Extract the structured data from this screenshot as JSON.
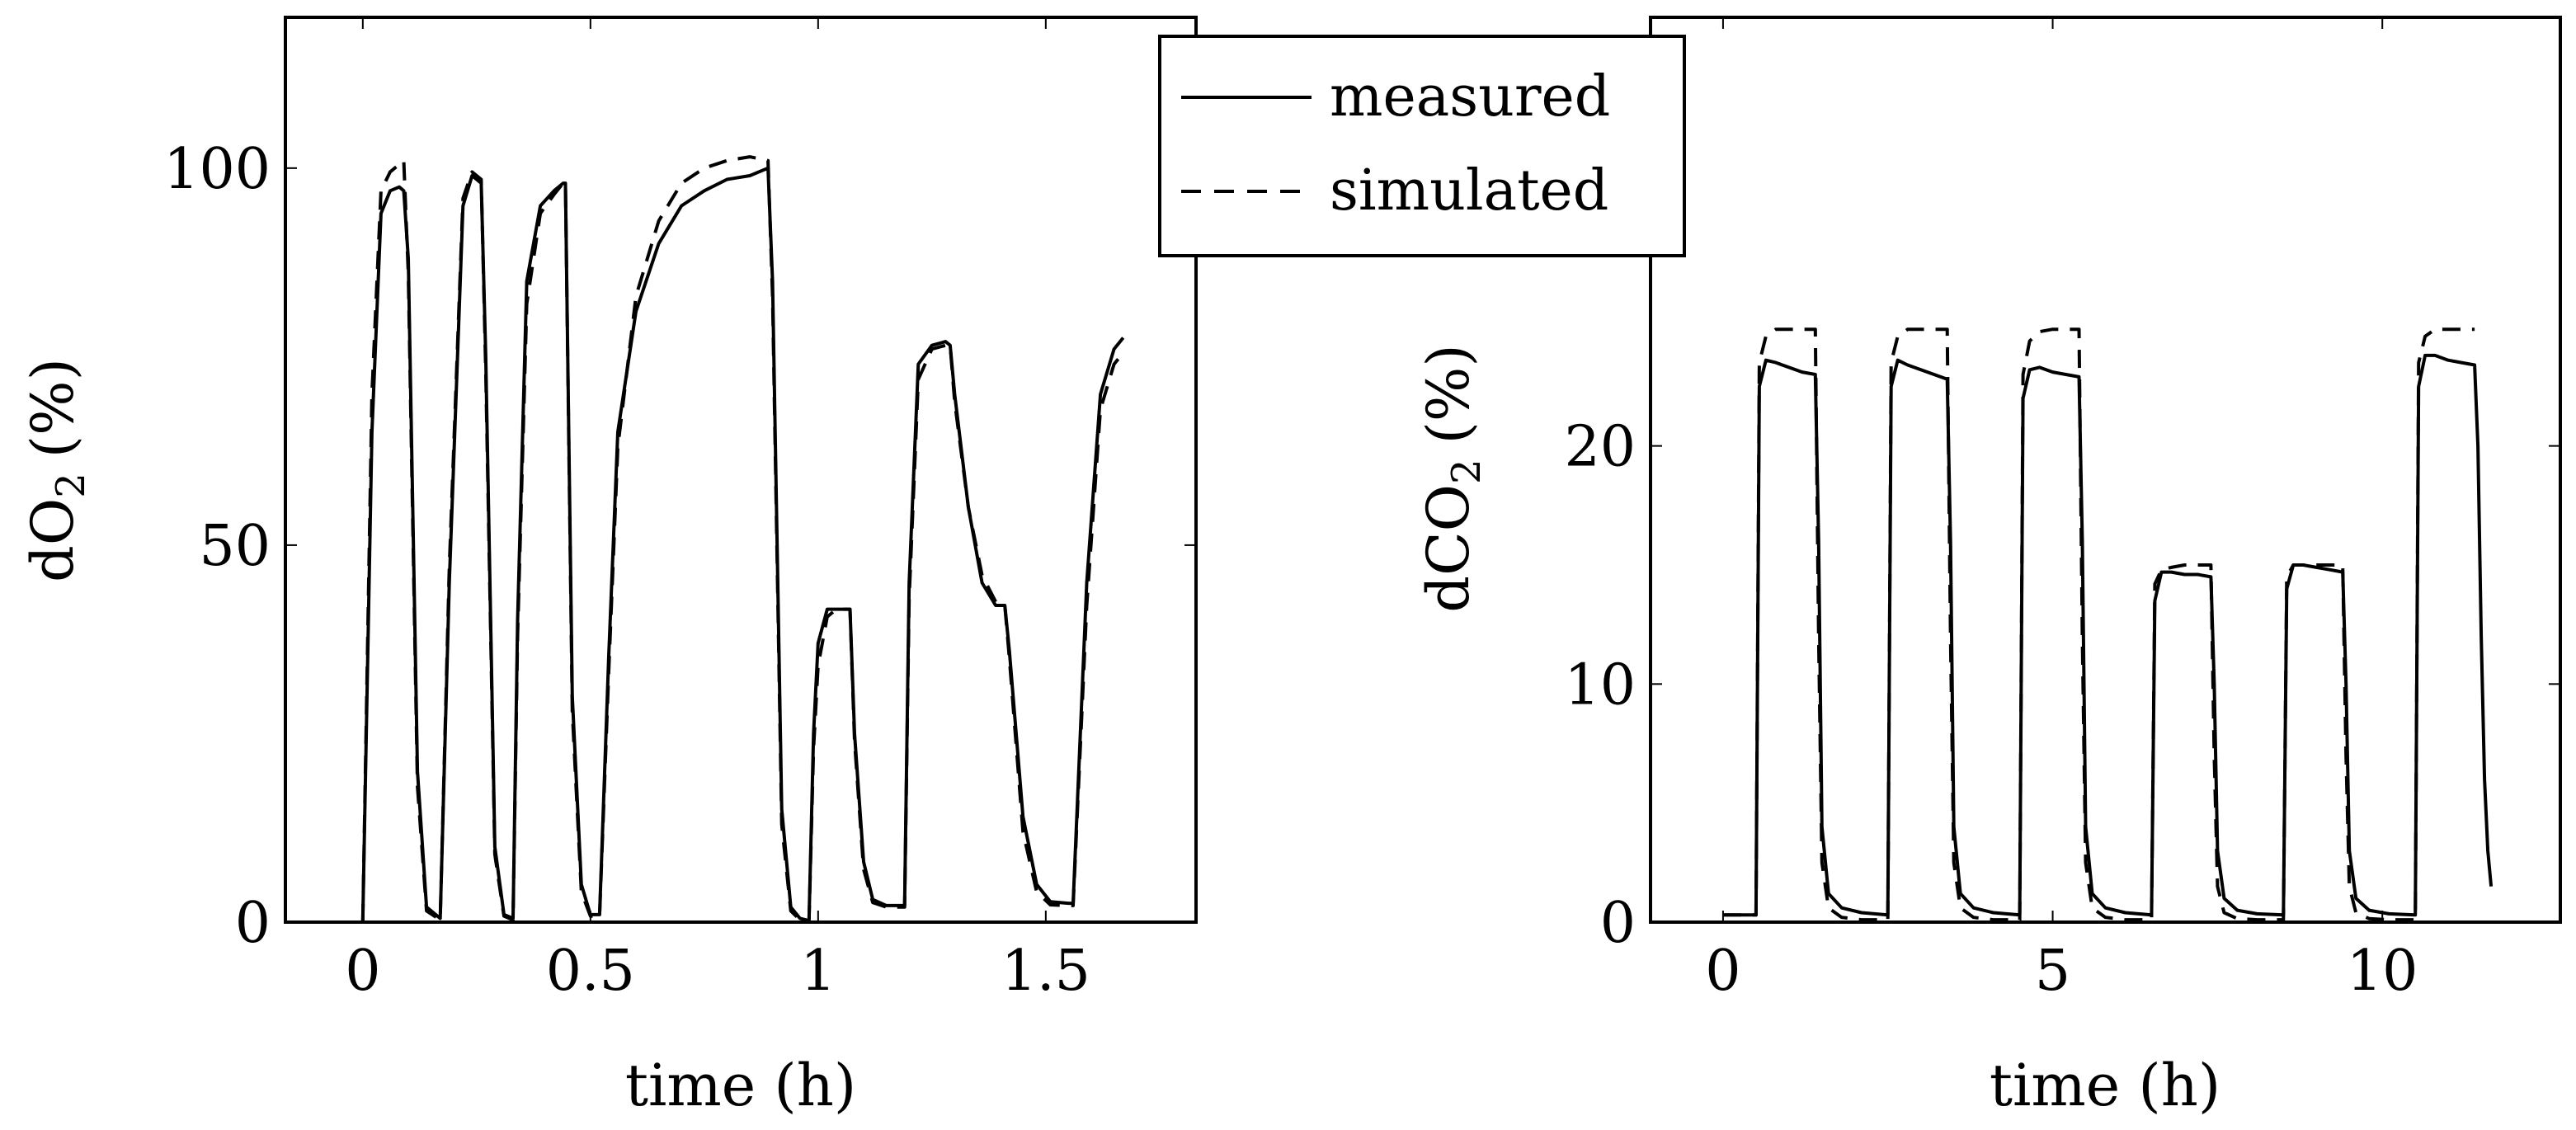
{
  "chart_data": [
    {
      "type": "line",
      "xlabel": "time (h)",
      "ylabel_main": "dO",
      "ylabel_sub": "2",
      "ylabel_unit": "(%)",
      "xlim": [
        -0.17,
        1.83
      ],
      "ylim": [
        0,
        120
      ],
      "xticks": [
        0,
        0.5,
        1,
        1.5
      ],
      "xtick_labels": [
        "0",
        "0.5",
        "1",
        "1.5"
      ],
      "yticks": [
        0,
        50,
        100
      ],
      "ytick_labels": [
        "0",
        "50",
        "100"
      ],
      "series": [
        {
          "name": "measured",
          "style": "solid",
          "x": [
            0,
            0.02,
            0.04,
            0.06,
            0.08,
            0.09,
            0.1,
            0.12,
            0.14,
            0.17,
            0.19,
            0.22,
            0.24,
            0.26,
            0.27,
            0.29,
            0.31,
            0.33,
            0.34,
            0.36,
            0.39,
            0.42,
            0.44,
            0.445,
            0.46,
            0.48,
            0.5,
            0.52,
            0.54,
            0.56,
            0.6,
            0.65,
            0.7,
            0.75,
            0.8,
            0.85,
            0.89,
            0.9,
            0.92,
            0.94,
            0.96,
            0.98,
            0.99,
            1.0,
            1.02,
            1.04,
            1.07,
            1.08,
            1.1,
            1.12,
            1.15,
            1.19,
            1.2,
            1.22,
            1.25,
            1.28,
            1.29,
            1.3,
            1.33,
            1.36,
            1.39,
            1.41,
            1.42,
            1.45,
            1.48,
            1.51,
            1.55,
            1.56,
            1.59,
            1.62,
            1.65,
            1.67
          ],
          "y": [
            0,
            65,
            94,
            97,
            97.5,
            97,
            88,
            20,
            2,
            0.5,
            45,
            95,
            99,
            98,
            75,
            10,
            1,
            0.5,
            40,
            85,
            95,
            97,
            98,
            98,
            30,
            5,
            1,
            1,
            35,
            65,
            81,
            90,
            95,
            97,
            98.5,
            99,
            100,
            85,
            15,
            2,
            0.5,
            0.2,
            25,
            37,
            41.5,
            41.5,
            41.5,
            25,
            8,
            3,
            2.2,
            2.2,
            45,
            74,
            76.5,
            77,
            76.5,
            70,
            55,
            45,
            42,
            42,
            36,
            14,
            5,
            2.7,
            2.5,
            2.5,
            45,
            70,
            76,
            77.5
          ]
        },
        {
          "name": "simulated",
          "style": "dashed",
          "x": [
            0,
            0.02,
            0.04,
            0.06,
            0.08,
            0.09,
            0.1,
            0.12,
            0.14,
            0.17,
            0.19,
            0.22,
            0.24,
            0.26,
            0.27,
            0.29,
            0.31,
            0.33,
            0.34,
            0.36,
            0.39,
            0.42,
            0.44,
            0.445,
            0.46,
            0.48,
            0.5,
            0.52,
            0.54,
            0.56,
            0.6,
            0.65,
            0.7,
            0.75,
            0.8,
            0.85,
            0.89,
            0.9,
            0.92,
            0.94,
            0.96,
            0.98,
            0.99,
            1.0,
            1.02,
            1.04,
            1.07,
            1.08,
            1.1,
            1.12,
            1.15,
            1.19,
            1.2,
            1.22,
            1.25,
            1.28,
            1.29,
            1.3,
            1.33,
            1.36,
            1.39,
            1.41,
            1.42,
            1.45,
            1.48,
            1.51,
            1.55,
            1.56,
            1.59,
            1.62,
            1.65,
            1.67
          ],
          "y": [
            0,
            70,
            97,
            99.5,
            100.5,
            101,
            86,
            18,
            1.5,
            0.3,
            47,
            96,
            99.5,
            98.5,
            73,
            9,
            0.8,
            0.3,
            38,
            82,
            94,
            96.5,
            98,
            98,
            28,
            4,
            0.8,
            0.8,
            33,
            63,
            83,
            93,
            98,
            100,
            101,
            101.5,
            101,
            83,
            13,
            1.5,
            0.3,
            0.1,
            23,
            34,
            40.5,
            41.5,
            41.5,
            24,
            7,
            2.6,
            2,
            2,
            43,
            72,
            76,
            76.5,
            76.5,
            69,
            55,
            46,
            42.5,
            42,
            35,
            12,
            4,
            2.3,
            2.2,
            2.2,
            42,
            68,
            74,
            75.5
          ]
        }
      ]
    },
    {
      "type": "line",
      "xlabel": "time (h)",
      "ylabel_main": "dCO",
      "ylabel_sub": "2",
      "ylabel_unit": "(%)",
      "xlim": [
        -1.1,
        12.7
      ],
      "ylim": [
        0,
        38
      ],
      "xticks": [
        0,
        5,
        10
      ],
      "xtick_labels": [
        "0",
        "5",
        "10"
      ],
      "yticks": [
        0,
        10,
        20
      ],
      "ytick_labels": [
        "0",
        "10",
        "20"
      ],
      "series": [
        {
          "name": "measured",
          "style": "solid",
          "x": [
            0,
            0.5,
            0.55,
            0.65,
            0.8,
            1.0,
            1.2,
            1.4,
            1.45,
            1.5,
            1.6,
            1.8,
            2.1,
            2.5,
            2.55,
            2.65,
            2.8,
            3.0,
            3.2,
            3.4,
            3.45,
            3.5,
            3.6,
            3.8,
            4.1,
            4.5,
            4.55,
            4.65,
            4.8,
            5.0,
            5.2,
            5.4,
            5.45,
            5.5,
            5.6,
            5.8,
            6.1,
            6.5,
            6.55,
            6.65,
            6.8,
            7.0,
            7.2,
            7.4,
            7.45,
            7.5,
            7.6,
            7.8,
            8.1,
            8.5,
            8.55,
            8.65,
            8.8,
            9.0,
            9.2,
            9.4,
            9.45,
            9.5,
            9.6,
            9.8,
            10.1,
            10.5,
            10.55,
            10.65,
            10.8,
            11.0,
            11.2,
            11.4,
            11.45,
            11.5,
            11.55,
            11.6,
            11.65
          ],
          "y": [
            0.3,
            0.3,
            22.5,
            23.6,
            23.5,
            23.3,
            23.1,
            23,
            16,
            4,
            1.2,
            0.6,
            0.4,
            0.3,
            22.5,
            23.6,
            23.4,
            23.2,
            23,
            22.8,
            16,
            4,
            1.2,
            0.6,
            0.4,
            0.3,
            22,
            23.2,
            23.3,
            23.1,
            23,
            22.9,
            16,
            4,
            1.2,
            0.6,
            0.4,
            0.3,
            13.5,
            14.7,
            14.7,
            14.6,
            14.6,
            14.5,
            10,
            3,
            1,
            0.5,
            0.35,
            0.3,
            14,
            15,
            15,
            14.9,
            14.8,
            14.7,
            10,
            3,
            1,
            0.5,
            0.35,
            0.3,
            22.5,
            23.8,
            23.8,
            23.6,
            23.5,
            23.4,
            20,
            12,
            6,
            3,
            1.5
          ]
        },
        {
          "name": "simulated",
          "style": "dashed",
          "x": [
            0,
            0.5,
            0.55,
            0.65,
            0.8,
            1.0,
            1.2,
            1.4,
            1.45,
            1.5,
            1.6,
            1.8,
            2.1,
            2.5,
            2.55,
            2.65,
            2.8,
            3.0,
            3.2,
            3.4,
            3.45,
            3.5,
            3.6,
            3.8,
            4.1,
            4.5,
            4.55,
            4.65,
            4.8,
            5.0,
            5.2,
            5.4,
            5.45,
            5.5,
            5.6,
            5.8,
            6.1,
            6.5,
            6.55,
            6.65,
            6.8,
            7.0,
            7.2,
            7.4,
            7.45,
            7.5,
            7.6,
            7.8,
            8.1,
            8.5,
            8.55,
            8.65,
            8.8,
            9.0,
            9.2,
            9.4,
            9.45,
            9.5,
            9.6,
            9.8,
            10.1,
            10.5,
            10.55,
            10.65,
            10.8,
            11.0,
            11.2,
            11.4
          ],
          "y": [
            0.3,
            0.3,
            23.5,
            24.6,
            24.9,
            24.9,
            24.9,
            24.9,
            12,
            2.5,
            0.6,
            0.2,
            0.1,
            0.1,
            23.5,
            24.6,
            24.9,
            24.9,
            24.9,
            24.9,
            12,
            2.5,
            0.6,
            0.2,
            0.1,
            0.1,
            23,
            24.4,
            24.8,
            24.9,
            24.9,
            24.9,
            12,
            2.5,
            0.6,
            0.2,
            0.1,
            0.1,
            14.2,
            14.8,
            14.9,
            15,
            15,
            15,
            7,
            1.5,
            0.4,
            0.15,
            0.1,
            0.1,
            14.5,
            15,
            15,
            15,
            15,
            15,
            7,
            1.5,
            0.4,
            0.15,
            0.1,
            0.1,
            23.5,
            24.6,
            24.9,
            24.9,
            24.9,
            24.9
          ]
        }
      ]
    }
  ],
  "legend": {
    "entries": [
      {
        "label": "measured",
        "style": "solid"
      },
      {
        "label": "simulated",
        "style": "dashed"
      }
    ]
  }
}
